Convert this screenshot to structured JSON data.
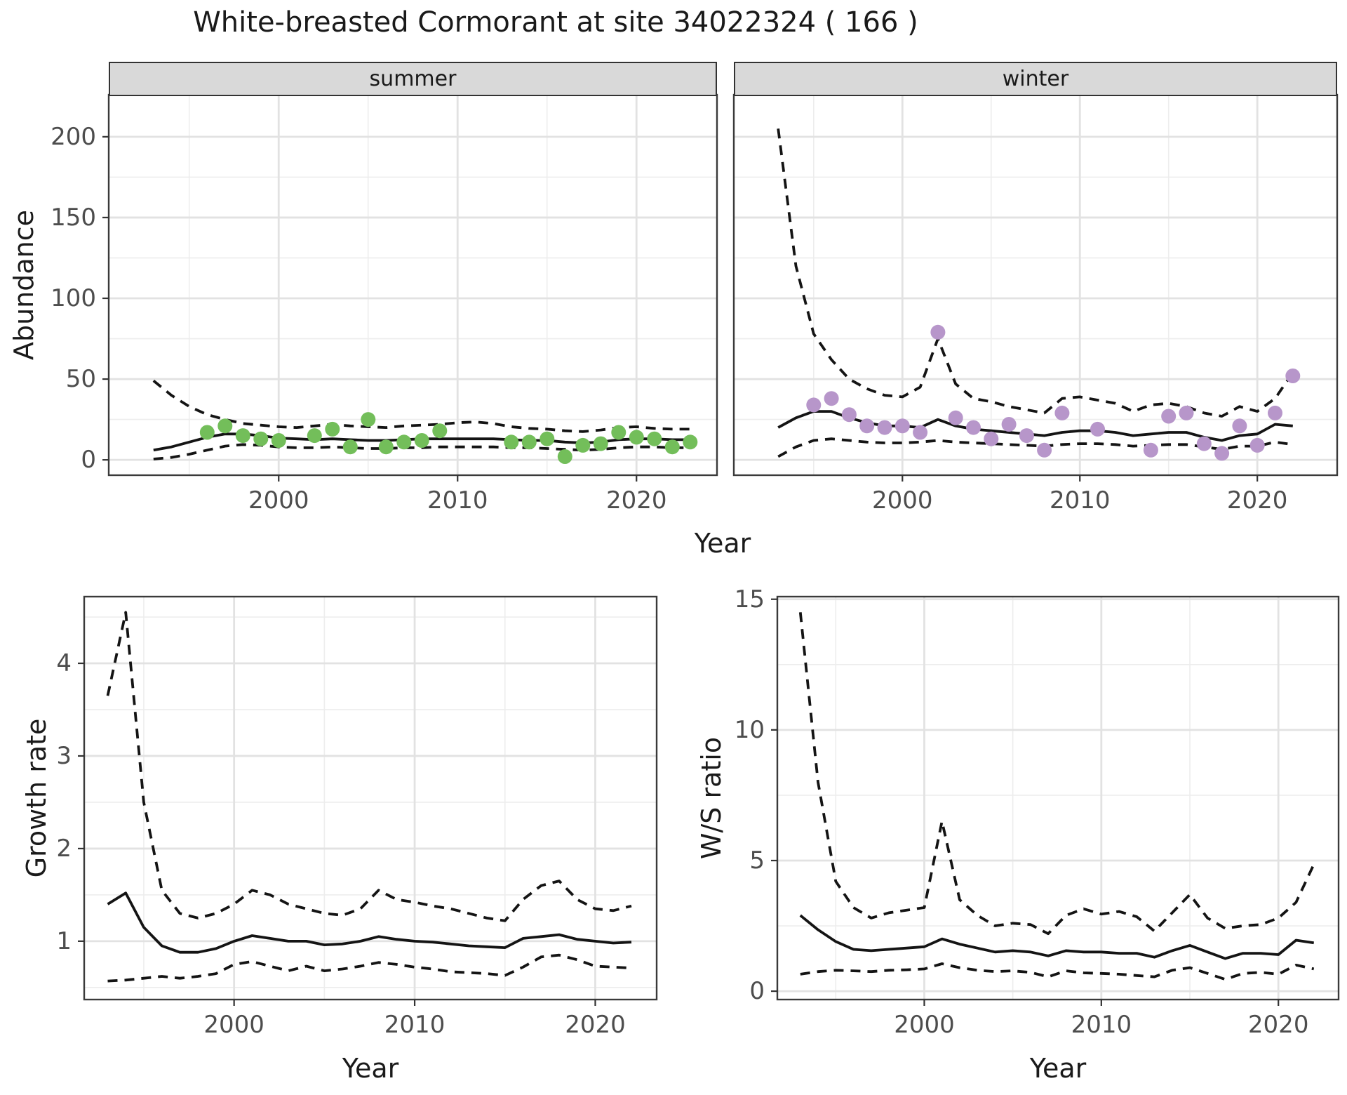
{
  "page": {
    "title": "White-breasted Cormorant at site 34022324 ( 166 )"
  },
  "colors": {
    "point_summer": "#73be5a",
    "point_winter": "#b796ca",
    "line": "#141414",
    "grid_major": "#e2e2e2",
    "grid_minor": "#ededed",
    "panel_border": "#3a3a3a",
    "tick_mark": "#333333",
    "strip_bg": "#d9d9d9",
    "axis_text": "#4d4d4d",
    "title_text": "#1a1a1a"
  },
  "chart_data": [
    {
      "id": "abundance-summer",
      "type": "line",
      "facet_label": "summer",
      "ylabel": "Abundance",
      "xlabel": "Year",
      "xlim": [
        1990.5,
        2024.5
      ],
      "ylim": [
        -9.5,
        226
      ],
      "xticks": [
        2000,
        2010,
        2020
      ],
      "yticks": [
        0,
        50,
        100,
        150,
        200
      ],
      "xminor": [
        1995,
        2005,
        2015
      ],
      "yminor": [
        25,
        75,
        125,
        175
      ],
      "grid": true,
      "x": [
        1993,
        1994,
        1995,
        1996,
        1997,
        1998,
        1999,
        2000,
        2001,
        2002,
        2003,
        2004,
        2005,
        2006,
        2007,
        2008,
        2009,
        2010,
        2011,
        2012,
        2013,
        2014,
        2015,
        2016,
        2017,
        2018,
        2019,
        2020,
        2021,
        2022,
        2023
      ],
      "series": [
        {
          "name": "upper-95ci",
          "style": "dashed",
          "values": [
            49,
            40,
            33,
            28,
            25,
            22.5,
            21.5,
            20.5,
            20,
            21,
            22,
            21,
            20.5,
            20,
            21,
            21.5,
            22,
            23,
            23.5,
            22.5,
            20.5,
            19.5,
            19,
            18,
            17.5,
            18.5,
            20,
            20.5,
            19.5,
            19,
            19
          ]
        },
        {
          "name": "fit",
          "style": "solid",
          "values": [
            6,
            8,
            11,
            14,
            16,
            16,
            15,
            13.5,
            13,
            12.5,
            13,
            12.5,
            12,
            12,
            12.5,
            13,
            13,
            13,
            13,
            13,
            12.5,
            12,
            12,
            11,
            10.5,
            11,
            12.5,
            13,
            13,
            12.5,
            12.5
          ]
        },
        {
          "name": "lower-95ci",
          "style": "dashed",
          "values": [
            0.5,
            1.5,
            3.5,
            6,
            8.5,
            9.5,
            9,
            8,
            7.5,
            7.5,
            8,
            7.5,
            7,
            7,
            7.5,
            7.5,
            8,
            8,
            8,
            8,
            7.5,
            7.5,
            7,
            6.5,
            6,
            6.5,
            7.5,
            8,
            8,
            7.5,
            7.5
          ]
        }
      ],
      "points": {
        "name": "summer-observations",
        "color": "#73be5a",
        "x": [
          1996,
          1997,
          1998,
          1999,
          2000,
          2002,
          2003,
          2004,
          2005,
          2006,
          2007,
          2008,
          2009,
          2013,
          2014,
          2015,
          2016,
          2017,
          2018,
          2019,
          2020,
          2021,
          2022,
          2023
        ],
        "y": [
          17,
          21,
          15,
          13,
          12,
          15,
          19,
          8,
          25,
          8,
          11,
          12,
          18,
          11,
          11,
          13,
          2,
          9,
          10,
          17,
          14,
          13,
          8,
          11
        ]
      }
    },
    {
      "id": "abundance-winter",
      "type": "line",
      "facet_label": "winter",
      "xlim": [
        1990.5,
        2024.5
      ],
      "ylim": [
        -9.5,
        226
      ],
      "xticks": [
        2000,
        2010,
        2020
      ],
      "yticks": [
        0,
        50,
        100,
        150,
        200
      ],
      "xminor": [
        1995,
        2005,
        2015
      ],
      "yminor": [
        25,
        75,
        125,
        175
      ],
      "grid": true,
      "x": [
        1993,
        1994,
        1995,
        1996,
        1997,
        1998,
        1999,
        2000,
        2001,
        2002,
        2003,
        2004,
        2005,
        2006,
        2007,
        2008,
        2009,
        2010,
        2011,
        2012,
        2013,
        2014,
        2015,
        2016,
        2017,
        2018,
        2019,
        2020,
        2021,
        2022
      ],
      "series": [
        {
          "name": "upper-95ci",
          "style": "dashed",
          "values": [
            205,
            120,
            78,
            62,
            50,
            44,
            40,
            39,
            45,
            75,
            47,
            38,
            36,
            33,
            31,
            29,
            38,
            39,
            37,
            35,
            30,
            34,
            35,
            33,
            29,
            27,
            33,
            30,
            38,
            54
          ]
        },
        {
          "name": "fit",
          "style": "solid",
          "values": [
            20,
            26,
            30,
            30,
            26,
            23,
            21,
            21,
            20,
            25,
            21,
            19,
            18,
            17,
            16,
            15,
            17,
            18,
            18,
            17,
            15,
            16,
            17,
            17,
            14,
            12,
            15,
            16,
            22,
            21
          ]
        },
        {
          "name": "lower-95ci",
          "style": "dashed",
          "values": [
            2,
            8,
            12,
            13,
            12,
            11,
            10.5,
            10.5,
            11,
            12,
            11,
            10.5,
            10,
            9.5,
            9,
            8.5,
            9.5,
            10,
            10,
            9.5,
            8.5,
            9,
            9.5,
            9.5,
            8,
            6.5,
            8.5,
            8.5,
            11,
            9.5
          ]
        }
      ],
      "points": {
        "name": "winter-observations",
        "color": "#b796ca",
        "x": [
          1995,
          1996,
          1997,
          1998,
          1999,
          2000,
          2001,
          2002,
          2003,
          2004,
          2005,
          2006,
          2007,
          2008,
          2009,
          2011,
          2014,
          2015,
          2016,
          2017,
          2018,
          2019,
          2020,
          2021,
          2022
        ],
        "y": [
          34,
          38,
          28,
          21,
          20,
          21,
          17,
          79,
          26,
          20,
          13,
          22,
          15,
          6,
          29,
          19,
          6,
          27,
          29,
          10,
          4,
          21,
          9,
          29,
          52
        ]
      }
    },
    {
      "id": "growth-rate",
      "type": "line",
      "ylabel": "Growth rate",
      "xlabel": "Year",
      "xlim": [
        1991.7,
        2023.4
      ],
      "ylim": [
        0.37,
        4.72
      ],
      "xticks": [
        2000,
        2010,
        2020
      ],
      "yticks": [
        1,
        2,
        3,
        4
      ],
      "xminor": [
        1995,
        2005,
        2015
      ],
      "yminor": [
        0.5,
        1.5,
        2.5,
        3.5,
        4.5
      ],
      "grid": true,
      "x": [
        1993,
        1994,
        1995,
        1996,
        1997,
        1998,
        1999,
        2000,
        2001,
        2002,
        2003,
        2004,
        2005,
        2006,
        2007,
        2008,
        2009,
        2010,
        2011,
        2012,
        2013,
        2014,
        2015,
        2016,
        2017,
        2018,
        2019,
        2020,
        2021,
        2022
      ],
      "series": [
        {
          "name": "upper-95ci",
          "style": "dashed",
          "values": [
            3.65,
            4.55,
            2.5,
            1.55,
            1.3,
            1.25,
            1.3,
            1.4,
            1.55,
            1.5,
            1.4,
            1.35,
            1.3,
            1.28,
            1.35,
            1.55,
            1.45,
            1.42,
            1.38,
            1.35,
            1.3,
            1.25,
            1.22,
            1.45,
            1.6,
            1.65,
            1.45,
            1.35,
            1.33,
            1.38
          ]
        },
        {
          "name": "fit",
          "style": "solid",
          "values": [
            1.4,
            1.52,
            1.15,
            0.95,
            0.88,
            0.88,
            0.92,
            1.0,
            1.06,
            1.03,
            1.0,
            1.0,
            0.96,
            0.97,
            1.0,
            1.05,
            1.02,
            1.0,
            0.99,
            0.97,
            0.95,
            0.94,
            0.93,
            1.03,
            1.05,
            1.07,
            1.02,
            1.0,
            0.98,
            0.99
          ]
        },
        {
          "name": "lower-95ci",
          "style": "dashed",
          "values": [
            0.57,
            0.58,
            0.6,
            0.62,
            0.6,
            0.62,
            0.65,
            0.75,
            0.78,
            0.73,
            0.68,
            0.73,
            0.68,
            0.7,
            0.73,
            0.77,
            0.75,
            0.72,
            0.7,
            0.67,
            0.66,
            0.65,
            0.63,
            0.72,
            0.83,
            0.85,
            0.8,
            0.73,
            0.72,
            0.71
          ]
        }
      ]
    },
    {
      "id": "ws-ratio",
      "type": "line",
      "ylabel": "W/S ratio",
      "xlabel": "Year",
      "xlim": [
        1991.7,
        2023.4
      ],
      "ylim": [
        -0.32,
        15.1
      ],
      "xticks": [
        2000,
        2010,
        2020
      ],
      "yticks": [
        0,
        5,
        10,
        15
      ],
      "xminor": [
        1995,
        2005,
        2015
      ],
      "yminor": [
        2.5,
        7.5,
        12.5
      ],
      "grid": true,
      "x": [
        1993,
        1994,
        1995,
        1996,
        1997,
        1998,
        1999,
        2000,
        2001,
        2002,
        2003,
        2004,
        2005,
        2006,
        2007,
        2008,
        2009,
        2010,
        2011,
        2012,
        2013,
        2014,
        2015,
        2016,
        2017,
        2018,
        2019,
        2020,
        2021,
        2022
      ],
      "series": [
        {
          "name": "upper-95ci",
          "style": "dashed",
          "values": [
            14.5,
            8.0,
            4.2,
            3.2,
            2.8,
            3.0,
            3.1,
            3.2,
            6.5,
            3.5,
            2.9,
            2.5,
            2.6,
            2.55,
            2.2,
            2.9,
            3.15,
            2.95,
            3.05,
            2.85,
            2.3,
            3.0,
            3.7,
            2.8,
            2.4,
            2.5,
            2.55,
            2.8,
            3.4,
            4.85
          ]
        },
        {
          "name": "fit",
          "style": "solid",
          "values": [
            2.9,
            2.35,
            1.9,
            1.6,
            1.55,
            1.6,
            1.65,
            1.7,
            2.0,
            1.8,
            1.65,
            1.5,
            1.55,
            1.5,
            1.35,
            1.55,
            1.5,
            1.5,
            1.45,
            1.45,
            1.3,
            1.55,
            1.75,
            1.5,
            1.25,
            1.45,
            1.45,
            1.4,
            1.95,
            1.85
          ]
        },
        {
          "name": "lower-95ci",
          "style": "dashed",
          "values": [
            0.65,
            0.75,
            0.8,
            0.78,
            0.75,
            0.8,
            0.82,
            0.85,
            1.05,
            0.9,
            0.8,
            0.75,
            0.78,
            0.72,
            0.55,
            0.78,
            0.7,
            0.68,
            0.65,
            0.6,
            0.55,
            0.8,
            0.9,
            0.68,
            0.45,
            0.68,
            0.72,
            0.65,
            1.0,
            0.85
          ]
        }
      ]
    }
  ]
}
